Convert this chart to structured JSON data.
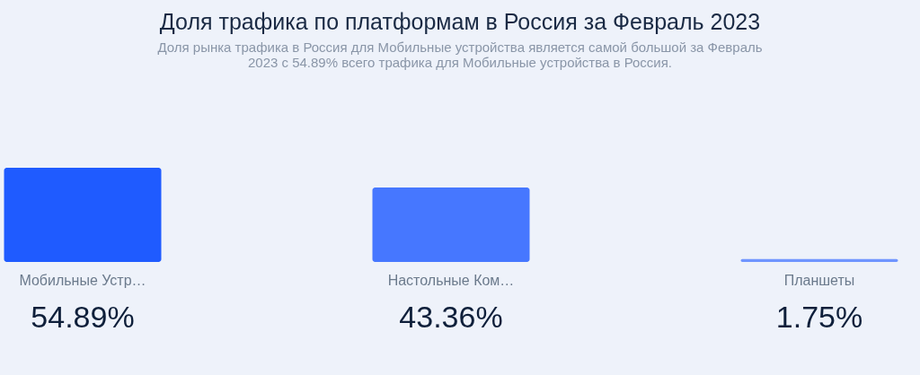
{
  "chart_data": {
    "type": "bar",
    "title": "Доля трафика по платформам в Россия за Февраль 2023",
    "subtitle": "Доля рынка трафика в Россия для Мобильные устройства является самой большой за Февраль\n2023 с 54.89% всего трафика для Мобильные устройства в Россия.",
    "categories": [
      "Мобильные Устр…",
      "Настольные Ком…",
      "Планшеты"
    ],
    "values": [
      54.89,
      43.36,
      1.75
    ],
    "colors": [
      "#1f5bff",
      "#4677ff",
      "#6f95ff"
    ],
    "value_labels": [
      "54.89%",
      "43.36%",
      "1.75%"
    ]
  }
}
